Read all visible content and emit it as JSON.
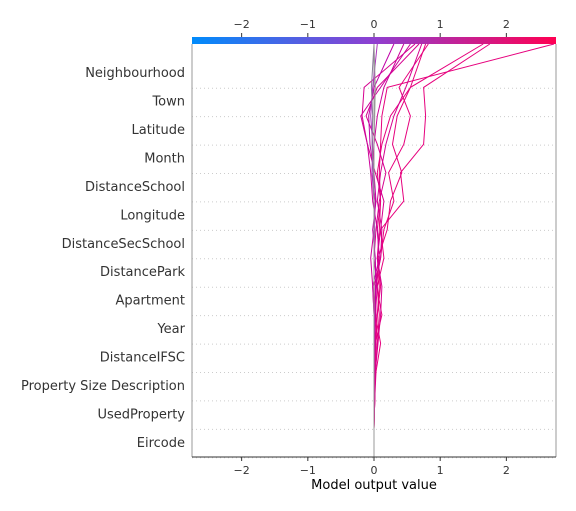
{
  "chart_data": {
    "type": "line",
    "xlabel": "Model output value",
    "xlim": [
      -2.75,
      2.75
    ],
    "xticks": [
      -2,
      -1,
      0,
      1,
      2
    ],
    "base_value": 0.0,
    "grid": "dotted horizontal lines per feature",
    "colorbar": {
      "position": "top",
      "from": "#008bfb",
      "mid": "#8f3fd0",
      "to": "#ff0052"
    },
    "features_top_to_bottom": [
      "Neighbourhood",
      "Town",
      "Latitude",
      "Month",
      "DistanceSchool",
      "Longitude",
      "DistanceSecSchool",
      "DistancePark",
      "Apartment",
      "Year",
      "DistanceIFSC",
      "Property Size Description",
      "UsedProperty",
      "Eircode"
    ],
    "series": [
      {
        "color": "#e6007d",
        "values": [
          2.72,
          0.2,
          0.12,
          0.1,
          0.08,
          0.1,
          0.05,
          0.08,
          0.04,
          0.12,
          0.02,
          0.01,
          0.0,
          0.0,
          0.0
        ]
      },
      {
        "color": "#e6007d",
        "values": [
          1.75,
          0.75,
          0.78,
          0.75,
          0.4,
          0.45,
          0.1,
          0.15,
          0.05,
          0.08,
          0.05,
          0.02,
          0.01,
          0.0,
          0.0
        ]
      },
      {
        "color": "#e6007d",
        "values": [
          1.65,
          0.55,
          0.35,
          0.28,
          0.42,
          0.25,
          0.2,
          0.06,
          0.1,
          0.05,
          0.03,
          0.02,
          0.01,
          0.0,
          0.0
        ]
      },
      {
        "color": "#e6007d",
        "values": [
          0.82,
          0.38,
          0.55,
          0.45,
          0.22,
          0.3,
          0.15,
          0.1,
          0.0,
          0.02,
          0.1,
          0.03,
          0.01,
          0.0,
          0.0
        ]
      },
      {
        "color": "#e6007d",
        "values": [
          0.78,
          0.55,
          0.25,
          0.12,
          0.05,
          0.1,
          0.08,
          0.05,
          0.08,
          0.05,
          0.02,
          0.02,
          0.01,
          0.0,
          0.0
        ]
      },
      {
        "color": "#d6008f",
        "values": [
          0.72,
          0.48,
          0.3,
          0.18,
          0.1,
          0.05,
          0.12,
          0.1,
          0.02,
          0.03,
          0.01,
          0.01,
          0.0,
          0.0,
          0.0
        ]
      },
      {
        "color": "#d6008f",
        "values": [
          0.68,
          0.05,
          -0.12,
          0.05,
          0.18,
          0.08,
          0.03,
          0.0,
          0.05,
          0.02,
          0.0,
          0.01,
          0.0,
          0.0,
          0.0
        ]
      },
      {
        "color": "#d6008f",
        "values": [
          0.62,
          -0.15,
          -0.18,
          -0.1,
          0.02,
          0.15,
          0.1,
          0.05,
          0.12,
          0.1,
          0.06,
          0.02,
          0.01,
          0.0,
          0.0
        ]
      },
      {
        "color": "#cc0099",
        "values": [
          0.55,
          0.1,
          -0.2,
          -0.1,
          -0.05,
          -0.02,
          0.05,
          0.08,
          -0.02,
          0.0,
          0.02,
          0.0,
          0.0,
          0.0,
          0.0
        ]
      },
      {
        "color": "#cc0099",
        "values": [
          0.45,
          0.15,
          0.05,
          0.0,
          -0.03,
          0.02,
          0.0,
          -0.05,
          -0.02,
          0.0,
          0.01,
          0.0,
          0.0,
          0.0,
          0.0
        ]
      },
      {
        "color": "#c000a8",
        "values": [
          0.3,
          0.0,
          -0.08,
          -0.06,
          0.0,
          0.03,
          -0.02,
          0.02,
          0.03,
          0.01,
          0.0,
          0.0,
          0.0,
          0.0,
          0.0
        ]
      },
      {
        "color": "#aa33bb",
        "values": [
          0.05,
          -0.02,
          -0.05,
          -0.02,
          -0.03,
          0.0,
          0.01,
          0.0,
          0.0,
          0.0,
          0.0,
          0.0,
          0.0,
          0.0,
          0.0
        ]
      },
      {
        "color": "#8a7a9a",
        "values": [
          0.0,
          -0.04,
          -0.02,
          -0.03,
          -0.01,
          0.0,
          0.0,
          0.0,
          0.0,
          0.0,
          0.0,
          0.0,
          0.0,
          0.0,
          0.0
        ]
      },
      {
        "color": "#999999",
        "values": [
          0.0,
          0.02,
          0.01,
          0.0,
          0.0,
          0.0,
          0.0,
          0.0,
          0.0,
          0.0,
          0.0,
          0.0,
          0.0,
          0.0,
          0.0
        ]
      }
    ]
  }
}
